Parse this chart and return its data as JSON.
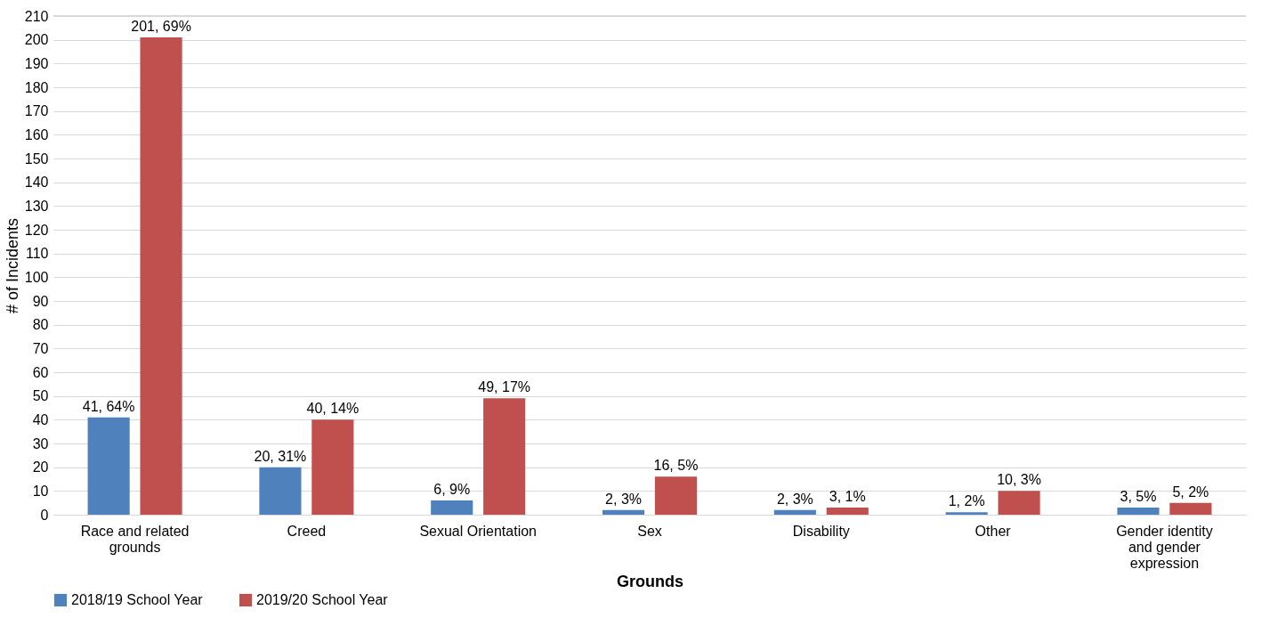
{
  "chart_data": {
    "type": "bar",
    "xlabel": "Grounds",
    "ylabel": "# of Incidents",
    "categories": [
      "Race and related grounds",
      "Creed",
      "Sexual Orientation",
      "Sex",
      "Disability",
      "Other",
      "Gender identity and gender expression"
    ],
    "series": [
      {
        "name": "2018/19 School Year",
        "color": "#4f81bd",
        "values": [
          41,
          20,
          6,
          2,
          2,
          1,
          3
        ],
        "value_labels": [
          "41, 64%",
          "20, 31%",
          "6, 9%",
          "2, 3%",
          "2, 3%",
          "1, 2%",
          "3, 5%"
        ]
      },
      {
        "name": "2019/20 School Year",
        "color": "#c0504d",
        "values": [
          201,
          40,
          49,
          16,
          3,
          10,
          5
        ],
        "value_labels": [
          "201, 69%",
          "40, 14%",
          "49, 17%",
          "16, 5%",
          "3, 1%",
          "10, 3%",
          "5, 2%"
        ]
      }
    ],
    "ylim": [
      0,
      210
    ],
    "yticks": [
      0,
      10,
      20,
      30,
      40,
      50,
      60,
      70,
      80,
      90,
      100,
      110,
      120,
      130,
      140,
      150,
      160,
      170,
      180,
      190,
      200,
      210
    ],
    "grid": "y",
    "legend": "bottom"
  }
}
